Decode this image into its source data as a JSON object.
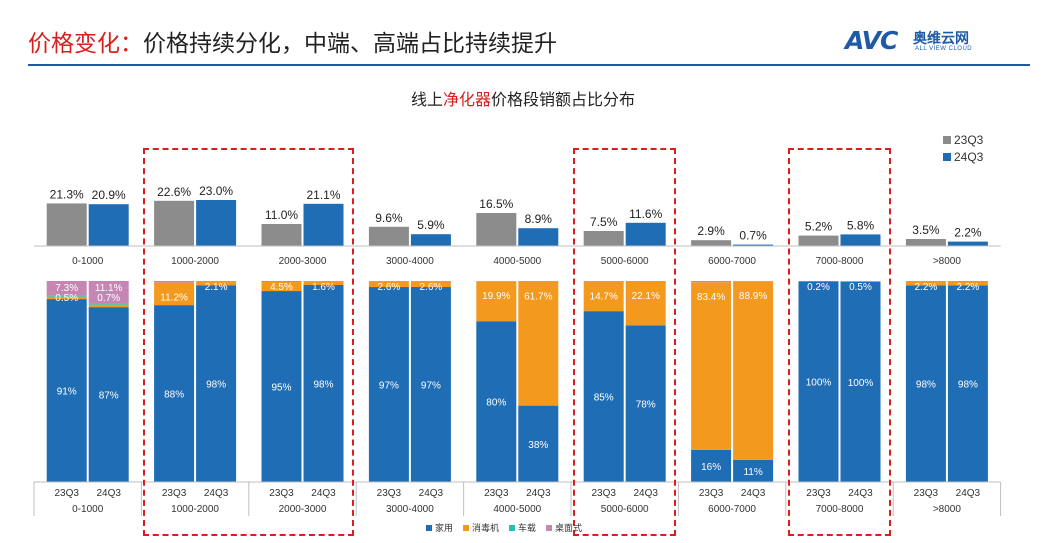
{
  "header": {
    "title_red": "价格变化：",
    "title_rest": "价格持续分化，中端、高端占比持续提升",
    "logo_mark": "AVC",
    "logo_cn": "奥维云网",
    "logo_en": "ALL VIEW CLOUD"
  },
  "colors": {
    "gray": "#8c8c8c",
    "blue": "#1f6db4",
    "orange": "#f39a1e",
    "teal": "#27c0b5",
    "pink": "#c586b4",
    "dash": "#d81e1e"
  },
  "chart_data": [
    {
      "type": "bar",
      "title_pre": "线上",
      "title_highlight": "净化器",
      "title_post": "价格段销额占比分布",
      "categories": [
        "0-1000",
        "1000-2000",
        "2000-3000",
        "3000-4000",
        "4000-5000",
        "5000-6000",
        "6000-7000",
        "7000-8000",
        ">8000"
      ],
      "series": [
        {
          "name": "23Q3",
          "values": [
            21.3,
            22.6,
            11.0,
            9.6,
            16.5,
            7.5,
            2.9,
            5.2,
            3.5
          ],
          "labels": [
            "21.3%",
            "22.6%",
            "11.0%",
            "9.6%",
            "16.5%",
            "7.5%",
            "2.9%",
            "5.2%",
            "3.5%"
          ]
        },
        {
          "name": "24Q3",
          "values": [
            20.9,
            23.0,
            21.1,
            5.9,
            8.9,
            11.6,
            0.7,
            5.8,
            2.2
          ],
          "labels": [
            "20.9%",
            "23.0%",
            "21.1%",
            "5.9%",
            "8.9%",
            "11.6%",
            "0.7%",
            "5.8%",
            "2.2%"
          ]
        }
      ],
      "legend_placement": "top-right"
    },
    {
      "type": "bar",
      "stacked": true,
      "periods": [
        "23Q3",
        "24Q3"
      ],
      "groups": [
        "0-1000",
        "1000-2000",
        "2000-3000",
        "3000-4000",
        "4000-5000",
        "5000-6000",
        "6000-7000",
        "7000-8000",
        ">8000"
      ],
      "series_names": [
        "家用",
        "消毒机",
        "车载",
        "桌面式"
      ],
      "bars": [
        {
          "group": "0-1000",
          "period": "23Q3",
          "segments": [
            91.0,
            1.2,
            0.5,
            7.3
          ],
          "labels": [
            "91%",
            "",
            "0.5%",
            "7.3%"
          ]
        },
        {
          "group": "0-1000",
          "period": "24Q3",
          "segments": [
            87.0,
            1.2,
            0.7,
            11.1
          ],
          "labels": [
            "87%",
            "",
            "0.7%",
            "11.1%"
          ]
        },
        {
          "group": "1000-2000",
          "period": "23Q3",
          "segments": [
            88.0,
            11.2,
            0,
            0.8
          ],
          "labels": [
            "88%",
            "11.2%",
            "",
            ""
          ]
        },
        {
          "group": "1000-2000",
          "period": "24Q3",
          "segments": [
            98.0,
            2.1,
            0,
            0
          ],
          "labels": [
            "98%",
            "2.1%",
            "",
            ""
          ]
        },
        {
          "group": "2000-3000",
          "period": "23Q3",
          "segments": [
            95.0,
            4.5,
            0,
            0.5
          ],
          "labels": [
            "95%",
            "4.5%",
            "",
            ""
          ]
        },
        {
          "group": "2000-3000",
          "period": "24Q3",
          "segments": [
            98.0,
            1.6,
            0,
            0.4
          ],
          "labels": [
            "98%",
            "1.6%",
            "",
            ""
          ]
        },
        {
          "group": "3000-4000",
          "period": "23Q3",
          "segments": [
            97.0,
            2.6,
            0,
            0.4
          ],
          "labels": [
            "97%",
            "2.6%",
            "",
            ""
          ]
        },
        {
          "group": "3000-4000",
          "period": "24Q3",
          "segments": [
            97.0,
            2.6,
            0,
            0.4
          ],
          "labels": [
            "97%",
            "2.6%",
            "",
            ""
          ]
        },
        {
          "group": "4000-5000",
          "period": "23Q3",
          "segments": [
            80.0,
            19.9,
            0,
            0.1
          ],
          "labels": [
            "80%",
            "19.9%",
            "",
            ""
          ]
        },
        {
          "group": "4000-5000",
          "period": "24Q3",
          "segments": [
            38.0,
            61.7,
            0,
            0.3
          ],
          "labels": [
            "38%",
            "61.7%",
            "",
            ""
          ]
        },
        {
          "group": "5000-6000",
          "period": "23Q3",
          "segments": [
            85.0,
            14.7,
            0,
            0.3
          ],
          "labels": [
            "85%",
            "14.7%",
            "",
            ""
          ]
        },
        {
          "group": "5000-6000",
          "period": "24Q3",
          "segments": [
            78.0,
            22.1,
            0,
            0
          ],
          "labels": [
            "78%",
            "22.1%",
            "",
            ""
          ]
        },
        {
          "group": "6000-7000",
          "period": "23Q3",
          "segments": [
            16.0,
            83.4,
            0,
            0.6
          ],
          "labels": [
            "16%",
            "83.4%",
            "",
            ""
          ]
        },
        {
          "group": "6000-7000",
          "period": "24Q3",
          "segments": [
            11.0,
            88.9,
            0,
            0.1
          ],
          "labels": [
            "11%",
            "88.9%",
            "",
            ""
          ]
        },
        {
          "group": "7000-8000",
          "period": "23Q3",
          "segments": [
            100.0,
            0.2,
            0,
            0
          ],
          "labels": [
            "100%",
            "0.2%",
            "",
            ""
          ]
        },
        {
          "group": "7000-8000",
          "period": "24Q3",
          "segments": [
            100.0,
            0.5,
            0,
            0
          ],
          "labels": [
            "100%",
            "0.5%",
            "",
            ""
          ]
        },
        {
          "group": ">8000",
          "period": "23Q3",
          "segments": [
            98.0,
            2.2,
            0,
            0
          ],
          "labels": [
            "98%",
            "2.2%",
            "",
            ""
          ]
        },
        {
          "group": ">8000",
          "period": "24Q3",
          "segments": [
            98.0,
            2.2,
            0,
            0
          ],
          "labels": [
            "98%",
            "2.2%",
            "",
            ""
          ]
        }
      ],
      "highlighted_groups": [
        "1000-2000",
        "2000-3000",
        "5000-6000",
        "7000-8000"
      ],
      "legend_placement": "bottom"
    }
  ]
}
